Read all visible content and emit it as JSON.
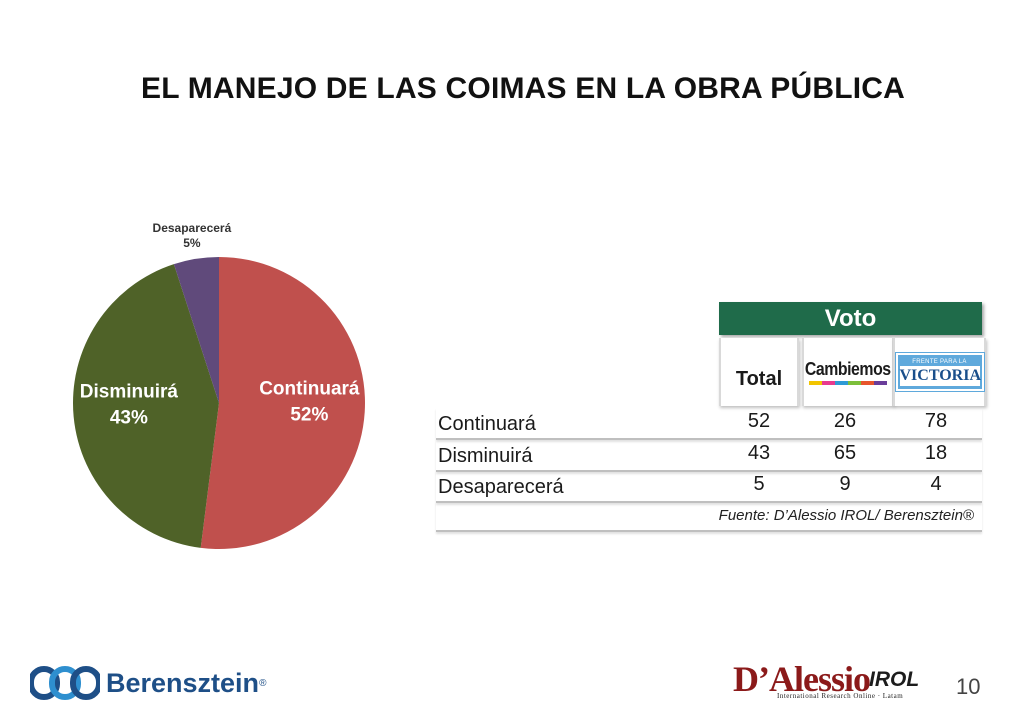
{
  "title": "EL MANEJO DE LAS COIMAS EN LA OBRA PÚBLICA",
  "chart_data": {
    "type": "pie",
    "slices": [
      {
        "label": "Continuará",
        "value": 52,
        "pct_label": "52%",
        "color": "#c0504d"
      },
      {
        "label": "Disminuirá",
        "value": 43,
        "pct_label": "43%",
        "color": "#4f6228"
      },
      {
        "label": "Desaparecerá",
        "value": 5,
        "pct_label": "5%",
        "color": "#604a7b"
      }
    ]
  },
  "table": {
    "group_header": "Voto",
    "columns": [
      "Total",
      "Cambiemos",
      "Frente para la Victoria"
    ],
    "rows": [
      {
        "label": "Continuará",
        "values": [
          "52",
          "26",
          "78"
        ]
      },
      {
        "label": "Disminuirá",
        "values": [
          "43",
          "65",
          "18"
        ]
      },
      {
        "label": "Desaparecerá",
        "values": [
          "5",
          "9",
          "4"
        ]
      }
    ],
    "source": "Fuente: D’Alessio IROL/ Berensztein®"
  },
  "logos": {
    "cambiemos": "Cambiemos",
    "victoria_top": "FRENTE PARA LA",
    "victoria_main": "VICTORIA",
    "berensztein": "Berensztein",
    "berensztein_reg": "®",
    "dalessio": "D’Alessio",
    "dalessio_irol": "IROL",
    "dalessio_sub": "International Research Online · Latam"
  },
  "page_number": "10"
}
